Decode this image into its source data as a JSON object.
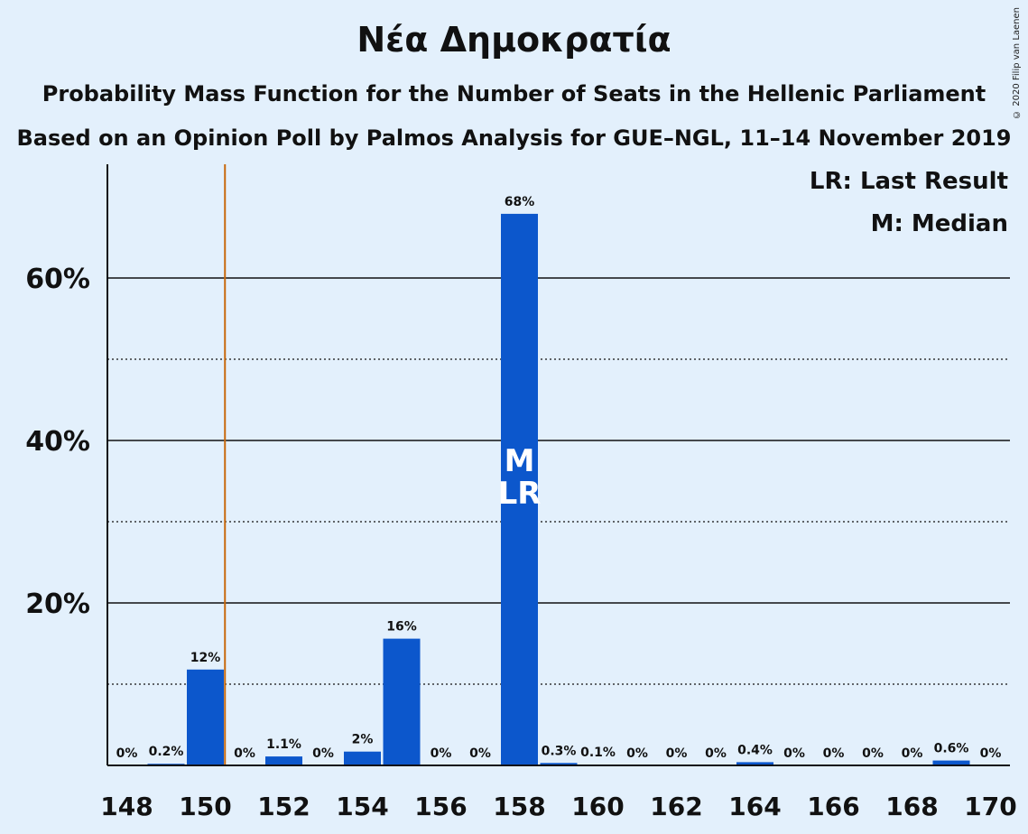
{
  "title": "Νέα Δημοκρατία",
  "subtitle1": "Probability Mass Function for the Number of Seats in the Hellenic Parliament",
  "subtitle2": "Based on an Opinion Poll by Palmos Analysis for GUE–NGL, 11–14 November 2019",
  "copyright": "© 2020 Filip van Laenen",
  "legend": [
    "LR: Last Result",
    "M: Median"
  ],
  "bar_markers": {
    "median_text": "M",
    "last_result_text": "LR"
  },
  "colors": {
    "bar": "#0c57cc",
    "background": "#e3f0fc",
    "last_result_line": "#c8690c"
  },
  "chart_data": {
    "type": "bar",
    "x": [
      148,
      149,
      150,
      151,
      152,
      153,
      154,
      155,
      156,
      157,
      158,
      159,
      160,
      161,
      162,
      163,
      164,
      165,
      166,
      167,
      168,
      169,
      170
    ],
    "values": [
      0,
      0.2,
      11.8,
      0,
      1.1,
      0,
      1.7,
      15.6,
      0,
      0,
      67.9,
      0.3,
      0.1,
      0,
      0,
      0,
      0.4,
      0,
      0,
      0,
      0,
      0.6,
      0
    ],
    "data_labels": [
      "0%",
      "0.2%",
      "12%",
      "0%",
      "1.1%",
      "0%",
      "2%",
      "16%",
      "0%",
      "0%",
      "68%",
      "0.3%",
      "0.1%",
      "0%",
      "0%",
      "0%",
      "0.4%",
      "0%",
      "0%",
      "0%",
      "0%",
      "0.6%",
      "0%"
    ],
    "x_tick_labels": [
      "148",
      "150",
      "152",
      "154",
      "156",
      "158",
      "160",
      "162",
      "164",
      "166",
      "168",
      "170"
    ],
    "y_ticks": [
      20,
      40,
      60
    ],
    "y_tick_labels": [
      "20%",
      "40%",
      "60%"
    ],
    "y_minor_gridlines": [
      10,
      30,
      50
    ],
    "ylim": [
      0,
      74
    ],
    "median": 158,
    "last_result": 158,
    "last_result_line_x": 150.5,
    "grid": true,
    "legend_position": "top-right"
  }
}
